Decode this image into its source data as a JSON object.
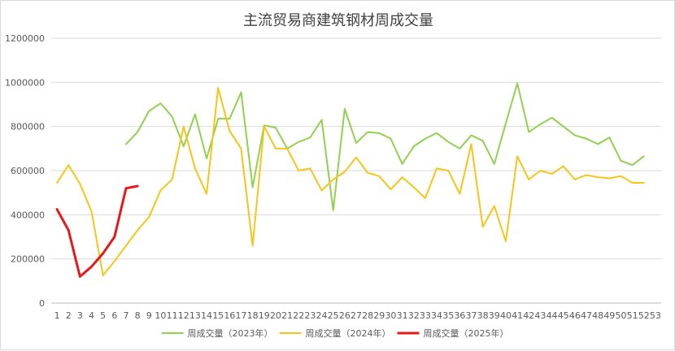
{
  "chart_data": {
    "type": "line",
    "title": "主流贸易商建筑钢材周成交量",
    "xlabel": "",
    "ylabel": "",
    "categories": [
      "1",
      "2",
      "3",
      "4",
      "5",
      "6",
      "7",
      "8",
      "9",
      "10",
      "11",
      "12",
      "13",
      "14",
      "15",
      "16",
      "17",
      "18",
      "19",
      "20",
      "21",
      "22",
      "23",
      "24",
      "25",
      "26",
      "27",
      "28",
      "29",
      "30",
      "31",
      "32",
      "33",
      "34",
      "35",
      "36",
      "37",
      "38",
      "39",
      "40",
      "41",
      "42",
      "43",
      "44",
      "45",
      "46",
      "47",
      "48",
      "49",
      "50",
      "51",
      "52",
      "53"
    ],
    "ylim": [
      0,
      1200000
    ],
    "yticks": [
      0,
      200000,
      400000,
      600000,
      800000,
      1000000,
      1200000
    ],
    "ytick_labels": [
      "0",
      "200000",
      "400000",
      "600000",
      "800000",
      "1000000",
      "1200000"
    ],
    "grid": true,
    "legend_position": "bottom",
    "series": [
      {
        "name": "周成交量（2023年）",
        "color": "#92d050",
        "values": [
          null,
          null,
          null,
          null,
          null,
          null,
          720000,
          775000,
          870000,
          905000,
          845000,
          710000,
          855000,
          655000,
          835000,
          835000,
          955000,
          525000,
          805000,
          795000,
          700000,
          730000,
          750000,
          830000,
          420000,
          880000,
          725000,
          775000,
          770000,
          745000,
          630000,
          710000,
          745000,
          770000,
          730000,
          700000,
          760000,
          735000,
          630000,
          815000,
          995000,
          775000,
          810000,
          840000,
          800000,
          760000,
          745000,
          720000,
          750000,
          645000,
          625000,
          665000,
          null
        ]
      },
      {
        "name": "周成交量（2024年）",
        "color": "#f5c518",
        "values": [
          545000,
          625000,
          540000,
          415000,
          125000,
          190000,
          260000,
          330000,
          390000,
          510000,
          560000,
          800000,
          610000,
          495000,
          975000,
          780000,
          700000,
          260000,
          800000,
          700000,
          700000,
          600000,
          610000,
          510000,
          560000,
          595000,
          660000,
          590000,
          575000,
          515000,
          570000,
          525000,
          475000,
          610000,
          600000,
          495000,
          720000,
          345000,
          440000,
          280000,
          665000,
          560000,
          600000,
          585000,
          620000,
          560000,
          580000,
          570000,
          565000,
          575000,
          545000,
          545000,
          null
        ]
      },
      {
        "name": "周成交量（2025年）",
        "color": "#e31a1c",
        "values": [
          425000,
          330000,
          120000,
          165000,
          225000,
          300000,
          520000,
          530000,
          null,
          null,
          null,
          null,
          null,
          null,
          null,
          null,
          null,
          null,
          null,
          null,
          null,
          null,
          null,
          null,
          null,
          null,
          null,
          null,
          null,
          null,
          null,
          null,
          null,
          null,
          null,
          null,
          null,
          null,
          null,
          null,
          null,
          null,
          null,
          null,
          null,
          null,
          null,
          null,
          null,
          null,
          null,
          null,
          null
        ]
      }
    ]
  }
}
